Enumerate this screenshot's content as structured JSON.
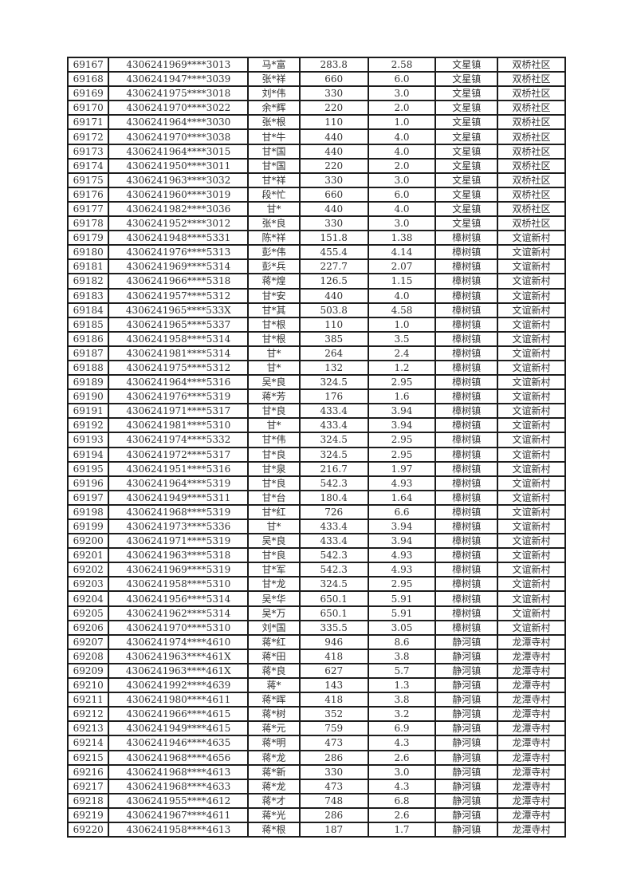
{
  "colors": {
    "page_background": "#ffffff",
    "table_border": "#1c1c1c",
    "text": "#303030"
  },
  "table": {
    "rows": [
      [
        "69167",
        "4306241969****3013",
        "马*富",
        "283.8",
        "2.58",
        "文星镇",
        "双桥社区"
      ],
      [
        "69168",
        "4306241947****3039",
        "张*祥",
        "660",
        "6.0",
        "文星镇",
        "双桥社区"
      ],
      [
        "69169",
        "4306241975****3018",
        "刘*伟",
        "330",
        "3.0",
        "文星镇",
        "双桥社区"
      ],
      [
        "69170",
        "4306241970****3022",
        "余*辉",
        "220",
        "2.0",
        "文星镇",
        "双桥社区"
      ],
      [
        "69171",
        "4306241964****3030",
        "张*根",
        "110",
        "1.0",
        "文星镇",
        "双桥社区"
      ],
      [
        "69172",
        "4306241970****3038",
        "甘*牛",
        "440",
        "4.0",
        "文星镇",
        "双桥社区"
      ],
      [
        "69173",
        "4306241964****3015",
        "甘*国",
        "440",
        "4.0",
        "文星镇",
        "双桥社区"
      ],
      [
        "69174",
        "4306241950****3011",
        "甘*国",
        "220",
        "2.0",
        "文星镇",
        "双桥社区"
      ],
      [
        "69175",
        "4306241963****3032",
        "甘*祥",
        "330",
        "3.0",
        "文星镇",
        "双桥社区"
      ],
      [
        "69176",
        "4306241960****3019",
        "段*忙",
        "660",
        "6.0",
        "文星镇",
        "双桥社区"
      ],
      [
        "69177",
        "4306241982****3036",
        "甘*",
        "440",
        "4.0",
        "文星镇",
        "双桥社区"
      ],
      [
        "69178",
        "4306241952****3012",
        "张*良",
        "330",
        "3.0",
        "文星镇",
        "双桥社区"
      ],
      [
        "69179",
        "4306241948****5331",
        "陈*祥",
        "151.8",
        "1.38",
        "樟树镇",
        "文谊新村"
      ],
      [
        "69180",
        "4306241976****5313",
        "彭*伟",
        "455.4",
        "4.14",
        "樟树镇",
        "文谊新村"
      ],
      [
        "69181",
        "4306241969****5314",
        "彭*兵",
        "227.7",
        "2.07",
        "樟树镇",
        "文谊新村"
      ],
      [
        "69182",
        "4306241966****5318",
        "蒋*煌",
        "126.5",
        "1.15",
        "樟树镇",
        "文谊新村"
      ],
      [
        "69183",
        "4306241957****5312",
        "甘*安",
        "440",
        "4.0",
        "樟树镇",
        "文谊新村"
      ],
      [
        "69184",
        "4306241965****533X",
        "甘*其",
        "503.8",
        "4.58",
        "樟树镇",
        "文谊新村"
      ],
      [
        "69185",
        "4306241965****5337",
        "甘*根",
        "110",
        "1.0",
        "樟树镇",
        "文谊新村"
      ],
      [
        "69186",
        "4306241958****5314",
        "甘*根",
        "385",
        "3.5",
        "樟树镇",
        "文谊新村"
      ],
      [
        "69187",
        "4306241981****5314",
        "甘*",
        "264",
        "2.4",
        "樟树镇",
        "文谊新村"
      ],
      [
        "69188",
        "4306241975****5312",
        "甘*",
        "132",
        "1.2",
        "樟树镇",
        "文谊新村"
      ],
      [
        "69189",
        "4306241964****5316",
        "吴*良",
        "324.5",
        "2.95",
        "樟树镇",
        "文谊新村"
      ],
      [
        "69190",
        "4306241976****5319",
        "蒋*芳",
        "176",
        "1.6",
        "樟树镇",
        "文谊新村"
      ],
      [
        "69191",
        "4306241971****5317",
        "甘*良",
        "433.4",
        "3.94",
        "樟树镇",
        "文谊新村"
      ],
      [
        "69192",
        "4306241981****5310",
        "甘*",
        "433.4",
        "3.94",
        "樟树镇",
        "文谊新村"
      ],
      [
        "69193",
        "4306241974****5332",
        "甘*伟",
        "324.5",
        "2.95",
        "樟树镇",
        "文谊新村"
      ],
      [
        "69194",
        "4306241972****5317",
        "甘*良",
        "324.5",
        "2.95",
        "樟树镇",
        "文谊新村"
      ],
      [
        "69195",
        "4306241951****5316",
        "甘*泉",
        "216.7",
        "1.97",
        "樟树镇",
        "文谊新村"
      ],
      [
        "69196",
        "4306241964****5319",
        "甘*良",
        "542.3",
        "4.93",
        "樟树镇",
        "文谊新村"
      ],
      [
        "69197",
        "4306241949****5311",
        "甘*台",
        "180.4",
        "1.64",
        "樟树镇",
        "文谊新村"
      ],
      [
        "69198",
        "4306241968****5319",
        "甘*红",
        "726",
        "6.6",
        "樟树镇",
        "文谊新村"
      ],
      [
        "69199",
        "4306241973****5336",
        "甘*",
        "433.4",
        "3.94",
        "樟树镇",
        "文谊新村"
      ],
      [
        "69200",
        "4306241971****5319",
        "吴*良",
        "433.4",
        "3.94",
        "樟树镇",
        "文谊新村"
      ],
      [
        "69201",
        "4306241963****5318",
        "甘*良",
        "542.3",
        "4.93",
        "樟树镇",
        "文谊新村"
      ],
      [
        "69202",
        "4306241969****5319",
        "甘*军",
        "542.3",
        "4.93",
        "樟树镇",
        "文谊新村"
      ],
      [
        "69203",
        "4306241958****5310",
        "甘*龙",
        "324.5",
        "2.95",
        "樟树镇",
        "文谊新村"
      ],
      [
        "69204",
        "4306241956****5314",
        "吴*华",
        "650.1",
        "5.91",
        "樟树镇",
        "文谊新村"
      ],
      [
        "69205",
        "4306241962****5314",
        "吴*万",
        "650.1",
        "5.91",
        "樟树镇",
        "文谊新村"
      ],
      [
        "69206",
        "4306241970****5310",
        "刘*国",
        "335.5",
        "3.05",
        "樟树镇",
        "文谊新村"
      ],
      [
        "69207",
        "4306241974****4610",
        "蒋*红",
        "946",
        "8.6",
        "静河镇",
        "龙潭寺村"
      ],
      [
        "69208",
        "4306241963****461X",
        "蒋*田",
        "418",
        "3.8",
        "静河镇",
        "龙潭寺村"
      ],
      [
        "69209",
        "4306241963****461X",
        "蒋*良",
        "627",
        "5.7",
        "静河镇",
        "龙潭寺村"
      ],
      [
        "69210",
        "4306241992****4639",
        "蒋*",
        "143",
        "1.3",
        "静河镇",
        "龙潭寺村"
      ],
      [
        "69211",
        "4306241980****4611",
        "蒋*晖",
        "418",
        "3.8",
        "静河镇",
        "龙潭寺村"
      ],
      [
        "69212",
        "4306241966****4615",
        "蒋*树",
        "352",
        "3.2",
        "静河镇",
        "龙潭寺村"
      ],
      [
        "69213",
        "4306241949****4615",
        "蒋*元",
        "759",
        "6.9",
        "静河镇",
        "龙潭寺村"
      ],
      [
        "69214",
        "4306241946****4635",
        "蒋*明",
        "473",
        "4.3",
        "静河镇",
        "龙潭寺村"
      ],
      [
        "69215",
        "4306241968****4656",
        "蒋*龙",
        "286",
        "2.6",
        "静河镇",
        "龙潭寺村"
      ],
      [
        "69216",
        "4306241968****4613",
        "蒋*新",
        "330",
        "3.0",
        "静河镇",
        "龙潭寺村"
      ],
      [
        "69217",
        "4306241968****4633",
        "蒋*龙",
        "473",
        "4.3",
        "静河镇",
        "龙潭寺村"
      ],
      [
        "69218",
        "4306241955****4612",
        "蒋*才",
        "748",
        "6.8",
        "静河镇",
        "龙潭寺村"
      ],
      [
        "69219",
        "4306241967****4611",
        "蒋*光",
        "286",
        "2.6",
        "静河镇",
        "龙潭寺村"
      ],
      [
        "69220",
        "4306241958****4613",
        "蒋*根",
        "187",
        "1.7",
        "静河镇",
        "龙潭寺村"
      ]
    ]
  }
}
